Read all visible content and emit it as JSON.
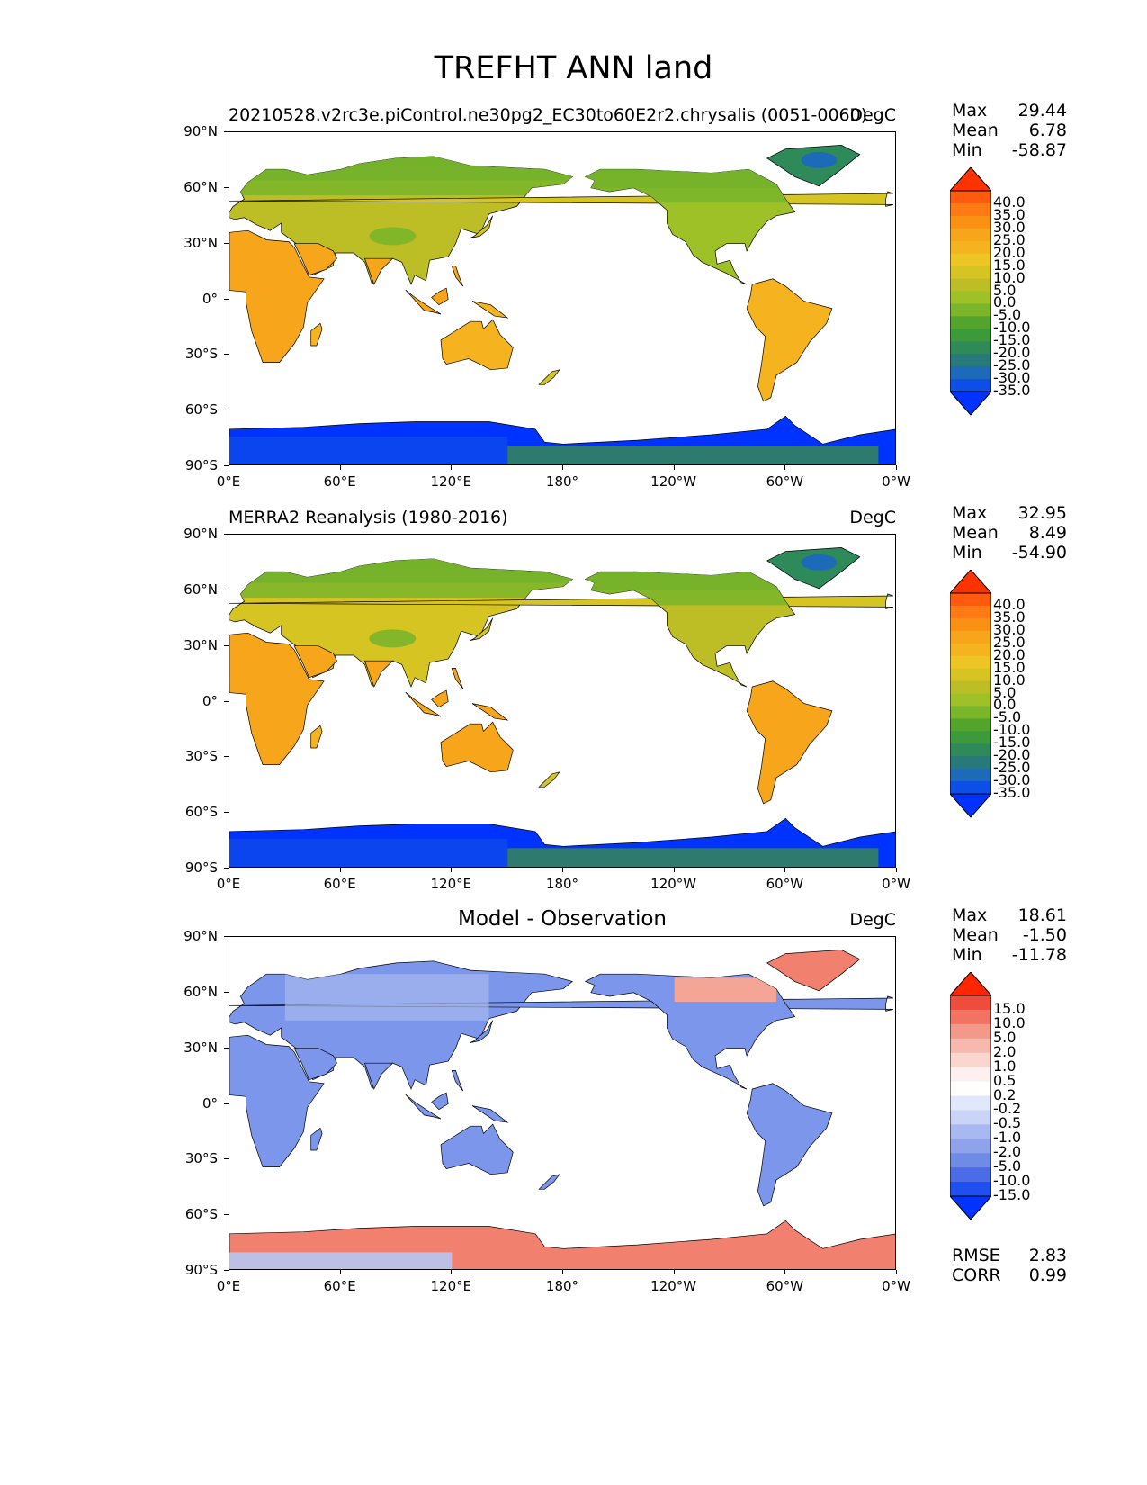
{
  "main_title": "TREFHT ANN land",
  "lat_labels": [
    "90°N",
    "60°N",
    "30°N",
    "0°",
    "30°S",
    "60°S",
    "90°S"
  ],
  "lon_labels": [
    "0°E",
    "60°E",
    "120°E",
    "180°",
    "120°W",
    "60°W",
    "0°W"
  ],
  "panels": [
    {
      "title": "20210528.v2rc3e.piControl.ne30pg2_EC30to60E2r2.chrysalis (0051-0060)",
      "units": "DegC",
      "stats": {
        "max_label": "Max",
        "max": "29.44",
        "mean_label": "Mean",
        "mean": "6.78",
        "min_label": "Min",
        "min": "-58.87"
      },
      "colorbar_labels": [
        "40.0",
        "35.0",
        "30.0",
        "25.0",
        "20.0",
        "15.0",
        "10.0",
        "5.0",
        "0.0",
        "-5.0",
        "-10.0",
        "-15.0",
        "-20.0",
        "-25.0",
        "-30.0",
        "-35.0"
      ]
    },
    {
      "title": "MERRA2 Reanalysis (1980-2016)",
      "units": "DegC",
      "stats": {
        "max_label": "Max",
        "max": "32.95",
        "mean_label": "Mean",
        "mean": "8.49",
        "min_label": "Min",
        "min": "-54.90"
      },
      "colorbar_labels": [
        "40.0",
        "35.0",
        "30.0",
        "25.0",
        "20.0",
        "15.0",
        "10.0",
        "5.0",
        "0.0",
        "-5.0",
        "-10.0",
        "-15.0",
        "-20.0",
        "-25.0",
        "-30.0",
        "-35.0"
      ]
    },
    {
      "title": "Model - Observation",
      "units": "DegC",
      "stats": {
        "max_label": "Max",
        "max": "18.61",
        "mean_label": "Mean",
        "mean": "-1.50",
        "min_label": "Min",
        "min": "-11.78"
      },
      "colorbar_labels": [
        "15.0",
        "10.0",
        "5.0",
        "2.0",
        "1.0",
        "0.5",
        "0.2",
        "-0.2",
        "-0.5",
        "-1.0",
        "-2.0",
        "-5.0",
        "-10.0",
        "-15.0"
      ],
      "metrics": {
        "rmse_label": "RMSE",
        "rmse": "2.83",
        "corr_label": "CORR",
        "corr": "0.99"
      }
    }
  ],
  "colors": {
    "temp_scale": [
      "#ff3300",
      "#ff5a0d",
      "#ff7a14",
      "#fb9114",
      "#f7a51a",
      "#f5b320",
      "#edc524",
      "#d6c422",
      "#bdbd26",
      "#9ec128",
      "#7ab52a",
      "#52a52a",
      "#3c9a3a",
      "#2f8a5a",
      "#287a7a",
      "#1d6bb8",
      "#0b4fe6",
      "#0033ff"
    ],
    "diff_scale": [
      "#ff2600",
      "#f04c3c",
      "#f27362",
      "#f4988a",
      "#f7b9ae",
      "#fad6cf",
      "#fdf0ee",
      "#ffffff",
      "#e2e8fb",
      "#c9d4f6",
      "#a8b8f0",
      "#8ea3ec",
      "#6f8be6",
      "#4c6be6",
      "#1f4ff0",
      "#0033ff"
    ],
    "land_warm": "#f5a623",
    "land_temperate": "#b5c22a",
    "land_cold": "#4f9e2b",
    "ice_sheet": "#0a45ee",
    "ice_shelf": "#2f7a6e",
    "diff_land": "#7b96ea",
    "diff_warm": "#f2806e"
  }
}
